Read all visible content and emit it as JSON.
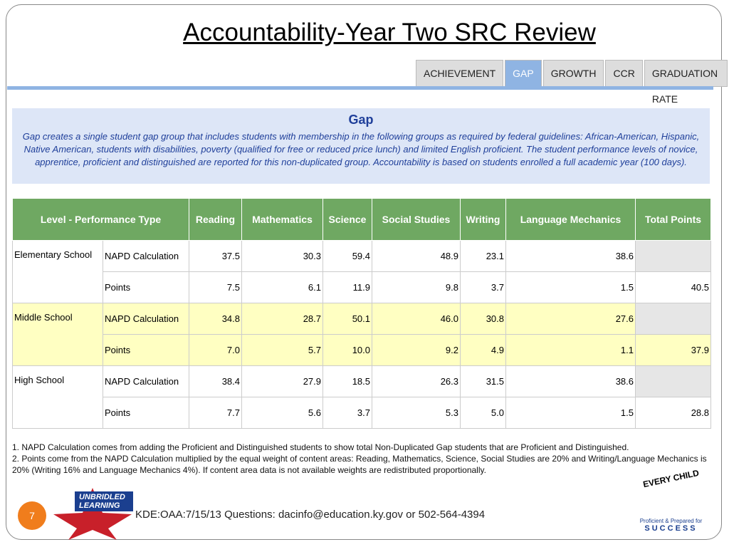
{
  "header": {
    "title": "Accountability-Year Two SRC Review"
  },
  "tabs": [
    "ACHIEVEMENT",
    "GAP",
    "GROWTH",
    "CCR",
    "GRADUATION RATE"
  ],
  "active_tab": "GAP",
  "gap": {
    "title": "Gap",
    "description": "Gap creates a single student gap group that includes students with membership in the following groups as required by federal guidelines: African-American, Hispanic, Native American, students with disabilities, poverty (qualified for free or reduced price lunch) and limited English proficient. The student performance levels of novice, apprentice, proficient and distinguished are reported for this non-duplicated group. Accountability is based on students enrolled a full academic year (100 days)."
  },
  "table": {
    "columns": [
      "Level - Performance Type",
      "Reading",
      "Mathematics",
      "Science",
      "Social Studies",
      "Writing",
      "Language Mechanics",
      "Total Points"
    ],
    "groups": [
      {
        "school": "Elementary School",
        "napd": {
          "label": "NAPD Calculation",
          "values": [
            "37.5",
            "30.3",
            "59.4",
            "48.9",
            "23.1",
            "38.6"
          ]
        },
        "points": {
          "label": "Points",
          "values": [
            "7.5",
            "6.1",
            "11.9",
            "9.8",
            "3.7",
            "1.5"
          ],
          "total": "40.5"
        }
      },
      {
        "school": "Middle School",
        "napd": {
          "label": "NAPD Calculation",
          "values": [
            "34.8",
            "28.7",
            "50.1",
            "46.0",
            "30.8",
            "27.6"
          ]
        },
        "points": {
          "label": "Points",
          "values": [
            "7.0",
            "5.7",
            "10.0",
            "9.2",
            "4.9",
            "1.1"
          ],
          "total": "37.9"
        }
      },
      {
        "school": "High School",
        "napd": {
          "label": "NAPD Calculation",
          "values": [
            "38.4",
            "27.9",
            "18.5",
            "26.3",
            "31.5",
            "38.6"
          ]
        },
        "points": {
          "label": "Points",
          "values": [
            "7.7",
            "5.6",
            "3.7",
            "5.3",
            "5.0",
            "1.5"
          ],
          "total": "28.8"
        }
      }
    ]
  },
  "notes": [
    "1. NAPD Calculation comes from adding the Proficient and Distinguished students to show total Non-Duplicated Gap students that are Proficient and Distinguished.",
    "2. Points come from the NAPD Calculation multiplied by the equal weight of content areas: Reading, Mathematics, Science, Social Studies are 20% and Writing/Language Mechanics is 20% (Writing 16% and Language Mechanics 4%). If content area data is not available weights are redistributed proportionally."
  ],
  "footer": {
    "page": "7",
    "text": "KDE:OAA:7/15/13  Questions: dacinfo@education.ky.gov or 502-564-4394",
    "left_logo": "UNBRIDLED LEARNING",
    "right_logo_top": "EVERY CHILD",
    "right_logo_mid": "Proficient & Prepared for",
    "right_logo_bottom": "SUCCESS"
  }
}
